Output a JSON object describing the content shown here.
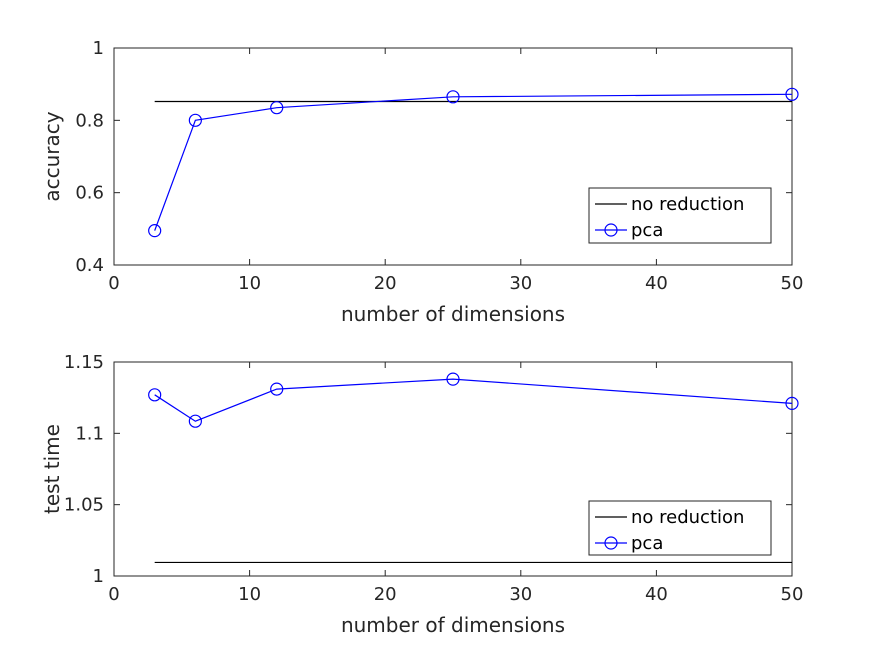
{
  "chart_data": [
    {
      "type": "line",
      "xlabel": "number of dimensions",
      "ylabel": "accuracy",
      "xlim": [
        0,
        50
      ],
      "ylim": [
        0.4,
        1
      ],
      "xticks": [
        0,
        10,
        20,
        30,
        40,
        50
      ],
      "xtick_labels": [
        "0",
        "10",
        "20",
        "30",
        "40",
        "50"
      ],
      "yticks": [
        0.4,
        0.6,
        0.8,
        1
      ],
      "ytick_labels": [
        "0.4",
        "0.6",
        "0.8",
        "1"
      ],
      "grid": false,
      "legend_position": "lower-right",
      "series": [
        {
          "name": "no reduction",
          "color": "#000000",
          "marker": "none",
          "x": [
            3,
            50
          ],
          "y": [
            0.852,
            0.852
          ]
        },
        {
          "name": "pca",
          "color": "#0000ff",
          "marker": "circle",
          "x": [
            3,
            6,
            12,
            25,
            50
          ],
          "y": [
            0.495,
            0.8,
            0.835,
            0.865,
            0.872
          ]
        }
      ]
    },
    {
      "type": "line",
      "xlabel": "number of dimensions",
      "ylabel": "test time",
      "xlim": [
        0,
        50
      ],
      "ylim": [
        1,
        1.15
      ],
      "xticks": [
        0,
        10,
        20,
        30,
        40,
        50
      ],
      "xtick_labels": [
        "0",
        "10",
        "20",
        "30",
        "40",
        "50"
      ],
      "yticks": [
        1,
        1.05,
        1.1,
        1.15
      ],
      "ytick_labels": [
        "1",
        "1.05",
        "1.1",
        "1.15"
      ],
      "grid": false,
      "legend_position": "lower-right",
      "series": [
        {
          "name": "no reduction",
          "color": "#000000",
          "marker": "none",
          "x": [
            3,
            50
          ],
          "y": [
            1.0095,
            1.0095
          ]
        },
        {
          "name": "pca",
          "color": "#0000ff",
          "marker": "circle",
          "x": [
            3,
            6,
            12,
            25,
            50
          ],
          "y": [
            1.127,
            1.1085,
            1.131,
            1.138,
            1.121
          ]
        }
      ]
    }
  ]
}
